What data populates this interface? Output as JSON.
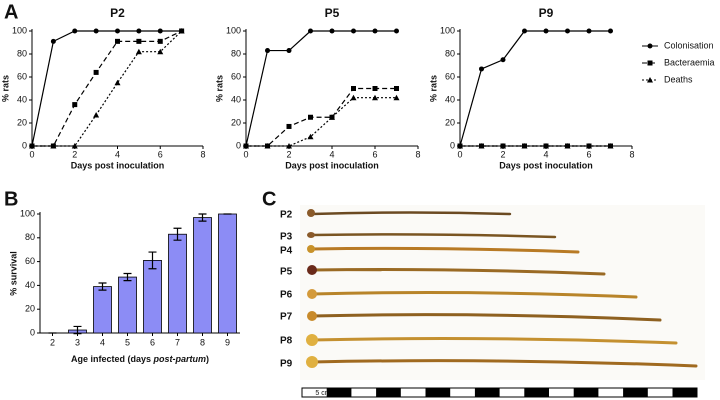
{
  "panel_labels": [
    "A",
    "B",
    "C"
  ],
  "chart_data": [
    {
      "type": "line",
      "title": "P2",
      "xlabel": "Days post inoculation",
      "ylabel": "% rats",
      "x": [
        0,
        1,
        2,
        3,
        4,
        5,
        6,
        7
      ],
      "xlim": [
        0,
        8
      ],
      "xticks": [
        0,
        2,
        4,
        6,
        8
      ],
      "ylim": [
        0,
        100
      ],
      "yticks": [
        0,
        20,
        40,
        60,
        80,
        100
      ],
      "series": [
        {
          "marker": "circle",
          "dash": "solid",
          "color": "#000000",
          "values": [
            0,
            91,
            100,
            100,
            100,
            100,
            100,
            100
          ]
        },
        {
          "marker": "square",
          "dash": "dashed",
          "color": "#000000",
          "values": [
            0,
            0,
            36,
            64,
            91,
            91,
            91,
            100
          ]
        },
        {
          "marker": "triangle",
          "dash": "dotted",
          "color": "#000000",
          "values": [
            0,
            0,
            0,
            27,
            55,
            82,
            82,
            100
          ]
        }
      ]
    },
    {
      "type": "line",
      "title": "P5",
      "xlabel": "Days post inoculation",
      "ylabel": "% rats",
      "x": [
        0,
        1,
        2,
        3,
        4,
        5,
        6,
        7
      ],
      "xlim": [
        0,
        8
      ],
      "xticks": [
        0,
        2,
        4,
        6,
        8
      ],
      "ylim": [
        0,
        100
      ],
      "yticks": [
        0,
        20,
        40,
        60,
        80,
        100
      ],
      "series": [
        {
          "marker": "circle",
          "dash": "solid",
          "color": "#000000",
          "values": [
            0,
            83,
            83,
            100,
            100,
            100,
            100,
            100
          ]
        },
        {
          "marker": "square",
          "dash": "dashed",
          "color": "#000000",
          "values": [
            0,
            0,
            17,
            25,
            25,
            50,
            50,
            50
          ]
        },
        {
          "marker": "triangle",
          "dash": "dotted",
          "color": "#000000",
          "values": [
            0,
            0,
            0,
            8,
            25,
            42,
            42,
            42
          ]
        }
      ]
    },
    {
      "type": "line",
      "title": "P9",
      "xlabel": "Days post inoculation",
      "ylabel": "% rats",
      "x": [
        0,
        1,
        2,
        3,
        4,
        5,
        6,
        7
      ],
      "xlim": [
        0,
        8
      ],
      "xticks": [
        0,
        2,
        4,
        6,
        8
      ],
      "ylim": [
        0,
        100
      ],
      "yticks": [
        0,
        20,
        40,
        60,
        80,
        100
      ],
      "legend": "right",
      "series": [
        {
          "name": "Colonisation",
          "marker": "circle",
          "dash": "solid",
          "color": "#000000",
          "values": [
            0,
            67,
            75,
            100,
            100,
            100,
            100,
            100
          ]
        },
        {
          "name": "Bacteraemia",
          "marker": "square",
          "dash": "dashed",
          "color": "#000000",
          "values": [
            0,
            0,
            0,
            0,
            0,
            0,
            0,
            0
          ]
        },
        {
          "name": "Deaths",
          "marker": "triangle",
          "dash": "dotted",
          "color": "#000000",
          "values": [
            0,
            0,
            0,
            0,
            0,
            0,
            0,
            0
          ]
        }
      ]
    },
    {
      "type": "bar",
      "ylabel": "% survival",
      "xlabel": [
        "Age infected (days ",
        "post-partum",
        ")"
      ],
      "categories": [
        "2",
        "3",
        "4",
        "5",
        "6",
        "7",
        "8",
        "9"
      ],
      "values": [
        0,
        2.5,
        39,
        47,
        61,
        83,
        97,
        100
      ],
      "errors": [
        0,
        3,
        3,
        3,
        7,
        5,
        3,
        0
      ],
      "color": "#8c8cf5",
      "ylim": [
        0,
        100
      ],
      "yticks": [
        0,
        20,
        40,
        60,
        80,
        100
      ]
    }
  ],
  "photo": {
    "labels": [
      "P2",
      "P3",
      "P4",
      "P5",
      "P6",
      "P7",
      "P8",
      "P9"
    ],
    "scale_label": "5 cm"
  }
}
